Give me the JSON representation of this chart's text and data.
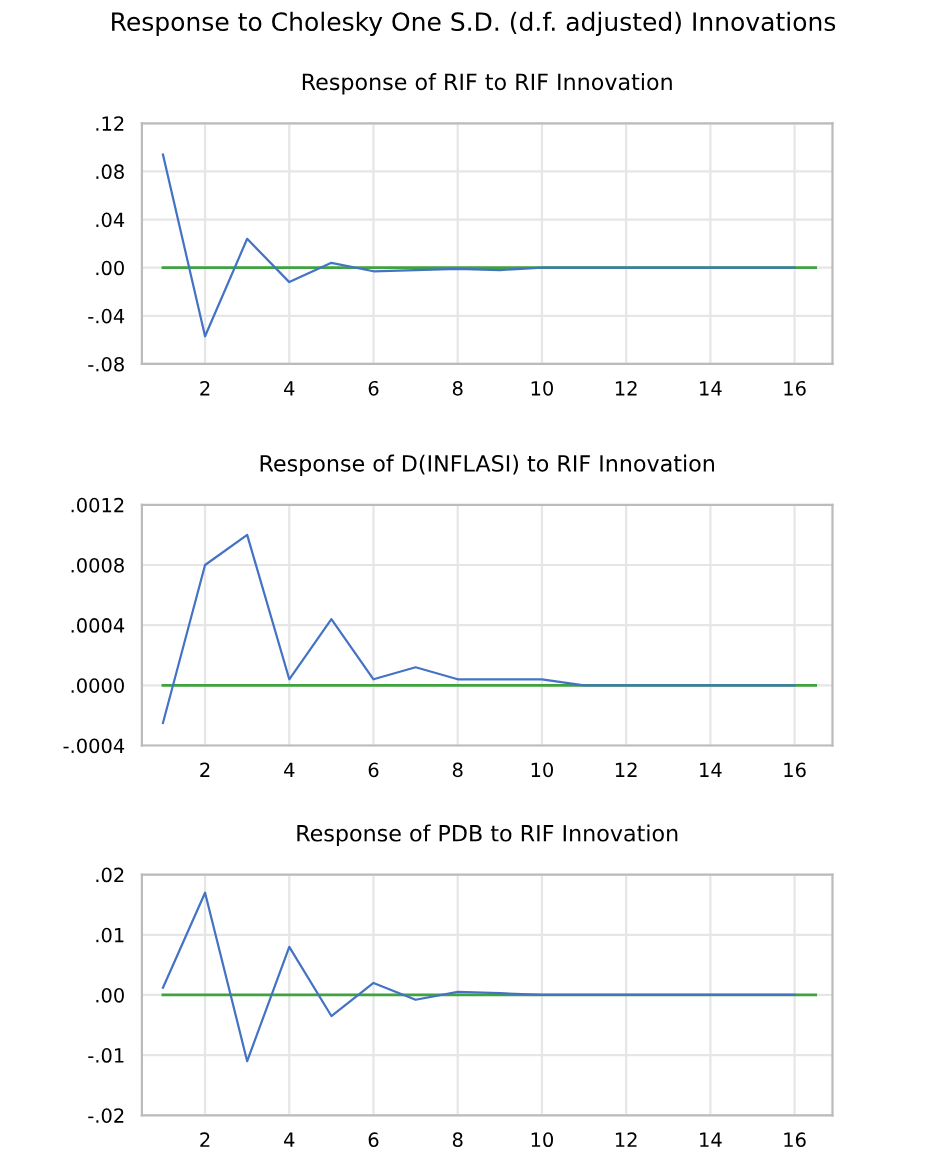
{
  "chart_data": [
    {
      "type": "line",
      "title": "Response to Cholesky One S.D. (d.f. adjusted) Innovations",
      "subtitle": "Response of RIF to RIF Innovation",
      "x": [
        1,
        2,
        3,
        4,
        5,
        6,
        7,
        8,
        9,
        10,
        11,
        12,
        13,
        14,
        15,
        16
      ],
      "series": [
        {
          "color": "#4472c4",
          "values": [
            0.094,
            -0.057,
            0.024,
            -0.012,
            0.004,
            -0.003,
            -0.002,
            -0.001,
            -0.002,
            0,
            0,
            0,
            0,
            0,
            0,
            0
          ]
        }
      ],
      "xlim": [
        0.5,
        16.9
      ],
      "xticks": [
        2,
        4,
        6,
        8,
        10,
        12,
        14,
        16
      ],
      "ylim": [
        -0.08,
        0.12
      ],
      "yticks": [
        {
          "value": -0.08,
          "label": "-.08"
        },
        {
          "value": -0.04,
          "label": "-.04"
        },
        {
          "value": 0,
          "label": ".00"
        },
        {
          "value": 0.04,
          "label": ".04"
        },
        {
          "value": 0.08,
          "label": ".08"
        },
        {
          "value": 0.12,
          "label": ".12"
        }
      ],
      "ref_lines": [
        {
          "axis": "y",
          "value": 0,
          "color": "#3fa33f"
        }
      ],
      "grid": true
    },
    {
      "type": "line",
      "title": "Response of D(INFLASI) to RIF Innovation",
      "x": [
        1,
        2,
        3,
        4,
        5,
        6,
        7,
        8,
        9,
        10,
        11,
        12,
        13,
        14,
        15,
        16
      ],
      "series": [
        {
          "color": "#4472c4",
          "values": [
            -0.00025,
            0.0008,
            0.001,
            4e-05,
            0.00044,
            4e-05,
            0.00012,
            4e-05,
            4e-05,
            4e-05,
            0,
            0,
            0,
            0,
            0,
            0
          ]
        }
      ],
      "xlim": [
        0.5,
        16.9
      ],
      "xticks": [
        2,
        4,
        6,
        8,
        10,
        12,
        14,
        16
      ],
      "ylim": [
        -0.0004,
        0.0012
      ],
      "yticks": [
        {
          "value": -0.0004,
          "label": "-.0004"
        },
        {
          "value": 0,
          "label": ".0000"
        },
        {
          "value": 0.0004,
          "label": ".0004"
        },
        {
          "value": 0.0008,
          "label": ".0008"
        },
        {
          "value": 0.0012,
          "label": ".0012"
        }
      ],
      "ref_lines": [
        {
          "axis": "y",
          "value": 0,
          "color": "#3fa33f"
        }
      ],
      "grid": true
    },
    {
      "type": "line",
      "title": "Response of PDB to RIF Innovation",
      "x": [
        1,
        2,
        3,
        4,
        5,
        6,
        7,
        8,
        9,
        10,
        11,
        12,
        13,
        14,
        15,
        16
      ],
      "series": [
        {
          "color": "#4472c4",
          "values": [
            0.0012,
            0.017,
            -0.011,
            0.008,
            -0.0035,
            0.002,
            -0.0008,
            0.0005,
            0.0003,
            0,
            0,
            0,
            0,
            0,
            0,
            0
          ]
        }
      ],
      "xlim": [
        0.5,
        16.9
      ],
      "xticks": [
        2,
        4,
        6,
        8,
        10,
        12,
        14,
        16
      ],
      "ylim": [
        -0.02,
        0.02
      ],
      "yticks": [
        {
          "value": -0.02,
          "label": "-.02"
        },
        {
          "value": -0.01,
          "label": "-.01"
        },
        {
          "value": 0,
          "label": ".00"
        },
        {
          "value": 0.01,
          "label": ".01"
        },
        {
          "value": 0.02,
          "label": ".02"
        }
      ],
      "ref_lines": [
        {
          "axis": "y",
          "value": 0,
          "color": "#3fa33f"
        }
      ],
      "grid": true
    }
  ]
}
